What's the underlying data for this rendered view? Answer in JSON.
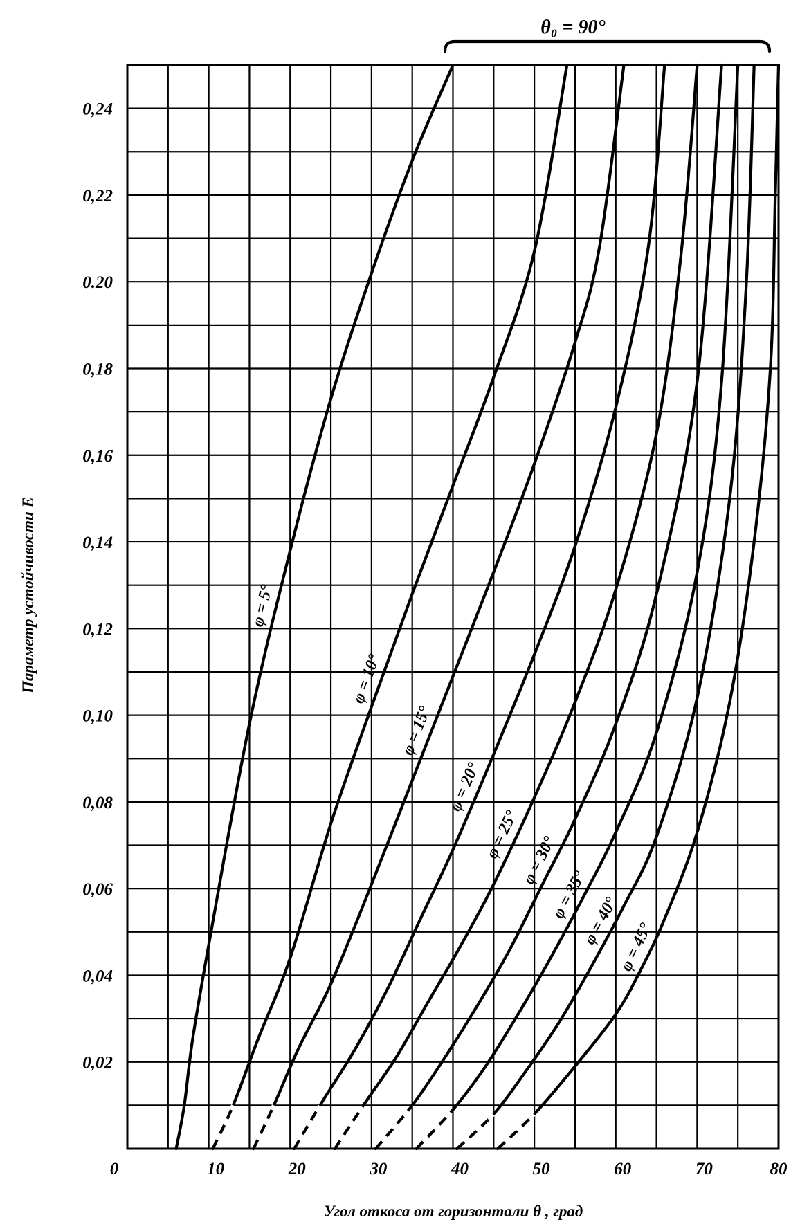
{
  "chart_data": {
    "type": "line",
    "xlabel": "Угол откоса от горизонтали θ , град",
    "ylabel": "Параметр устойчивости E",
    "xlim": [
      0,
      80
    ],
    "ylim": [
      0,
      0.25
    ],
    "x_ticks": [
      "0",
      "10",
      "20",
      "30",
      "40",
      "50",
      "60",
      "70",
      "80"
    ],
    "y_ticks": [
      {
        "v": 0.02,
        "label": "0,02"
      },
      {
        "v": 0.04,
        "label": "0,04"
      },
      {
        "v": 0.06,
        "label": "0,06"
      },
      {
        "v": 0.08,
        "label": "0,08"
      },
      {
        "v": 0.1,
        "label": "0,10"
      },
      {
        "v": 0.12,
        "label": "0,12"
      },
      {
        "v": 0.14,
        "label": "0,14"
      },
      {
        "v": 0.16,
        "label": "0,16"
      },
      {
        "v": 0.18,
        "label": "0,18"
      },
      {
        "v": 0.2,
        "label": "0.20"
      },
      {
        "v": 0.22,
        "label": "0,22"
      },
      {
        "v": 0.24,
        "label": "0,24"
      }
    ],
    "grid": true,
    "top_annotation": "θ₀ = 90°",
    "series": [
      {
        "name": "φ = 5°",
        "points": [
          [
            6,
            0
          ],
          [
            7,
            0.01
          ],
          [
            8,
            0.025
          ],
          [
            10,
            0.047
          ],
          [
            15,
            0.098
          ],
          [
            20,
            0.138
          ],
          [
            25,
            0.173
          ],
          [
            30,
            0.202
          ],
          [
            35,
            0.228
          ],
          [
            40,
            0.25
          ]
        ]
      },
      {
        "name": "φ = 10°",
        "points": [
          [
            10.5,
            0
          ],
          [
            13,
            0.01
          ],
          [
            16,
            0.025
          ],
          [
            20,
            0.044
          ],
          [
            25,
            0.075
          ],
          [
            30,
            0.102
          ],
          [
            35,
            0.128
          ],
          [
            40,
            0.153
          ],
          [
            45,
            0.178
          ],
          [
            50,
            0.207
          ],
          [
            54,
            0.25
          ]
        ]
      },
      {
        "name": "φ = 15°",
        "points": [
          [
            15.5,
            0
          ],
          [
            18,
            0.01
          ],
          [
            21,
            0.023
          ],
          [
            25,
            0.038
          ],
          [
            30,
            0.061
          ],
          [
            35,
            0.085
          ],
          [
            40,
            0.109
          ],
          [
            45,
            0.133
          ],
          [
            50,
            0.158
          ],
          [
            55,
            0.186
          ],
          [
            58,
            0.208
          ],
          [
            61,
            0.25
          ]
        ]
      },
      {
        "name": "φ = 20°",
        "points": [
          [
            20.5,
            0
          ],
          [
            24,
            0.011
          ],
          [
            28,
            0.023
          ],
          [
            32,
            0.037
          ],
          [
            36,
            0.053
          ],
          [
            40,
            0.069
          ],
          [
            45,
            0.091
          ],
          [
            50,
            0.114
          ],
          [
            55,
            0.139
          ],
          [
            60,
            0.171
          ],
          [
            64,
            0.208
          ],
          [
            66,
            0.25
          ]
        ]
      },
      {
        "name": "φ = 25°",
        "points": [
          [
            25.5,
            0
          ],
          [
            29,
            0.01
          ],
          [
            33,
            0.021
          ],
          [
            37,
            0.034
          ],
          [
            41,
            0.047
          ],
          [
            45,
            0.061
          ],
          [
            50,
            0.081
          ],
          [
            55,
            0.103
          ],
          [
            60,
            0.129
          ],
          [
            65,
            0.165
          ],
          [
            68,
            0.206
          ],
          [
            70,
            0.25
          ]
        ]
      },
      {
        "name": "φ = 30°",
        "points": [
          [
            30.5,
            0
          ],
          [
            35,
            0.01
          ],
          [
            39,
            0.021
          ],
          [
            43,
            0.033
          ],
          [
            47,
            0.046
          ],
          [
            51,
            0.061
          ],
          [
            55,
            0.076
          ],
          [
            60,
            0.098
          ],
          [
            65,
            0.128
          ],
          [
            70,
            0.177
          ],
          [
            73,
            0.25
          ]
        ]
      },
      {
        "name": "φ = 35°",
        "points": [
          [
            35.5,
            0
          ],
          [
            40,
            0.009
          ],
          [
            44,
            0.019
          ],
          [
            48,
            0.031
          ],
          [
            52,
            0.044
          ],
          [
            56,
            0.058
          ],
          [
            60,
            0.073
          ],
          [
            65,
            0.096
          ],
          [
            70,
            0.133
          ],
          [
            73,
            0.177
          ],
          [
            75,
            0.25
          ]
        ]
      },
      {
        "name": "φ = 40°",
        "points": [
          [
            40.5,
            0
          ],
          [
            45,
            0.008
          ],
          [
            49,
            0.018
          ],
          [
            53,
            0.029
          ],
          [
            57,
            0.042
          ],
          [
            61,
            0.056
          ],
          [
            65,
            0.072
          ],
          [
            70,
            0.104
          ],
          [
            74,
            0.15
          ],
          [
            76,
            0.198
          ],
          [
            77,
            0.25
          ]
        ]
      },
      {
        "name": "φ = 45°",
        "points": [
          [
            45.5,
            0
          ],
          [
            50,
            0.008
          ],
          [
            55,
            0.019
          ],
          [
            60,
            0.031
          ],
          [
            63,
            0.041
          ],
          [
            66,
            0.053
          ],
          [
            70,
            0.073
          ],
          [
            74,
            0.103
          ],
          [
            77,
            0.14
          ],
          [
            79,
            0.18
          ],
          [
            79.6,
            0.22
          ],
          [
            80,
            0.25
          ]
        ]
      }
    ]
  }
}
